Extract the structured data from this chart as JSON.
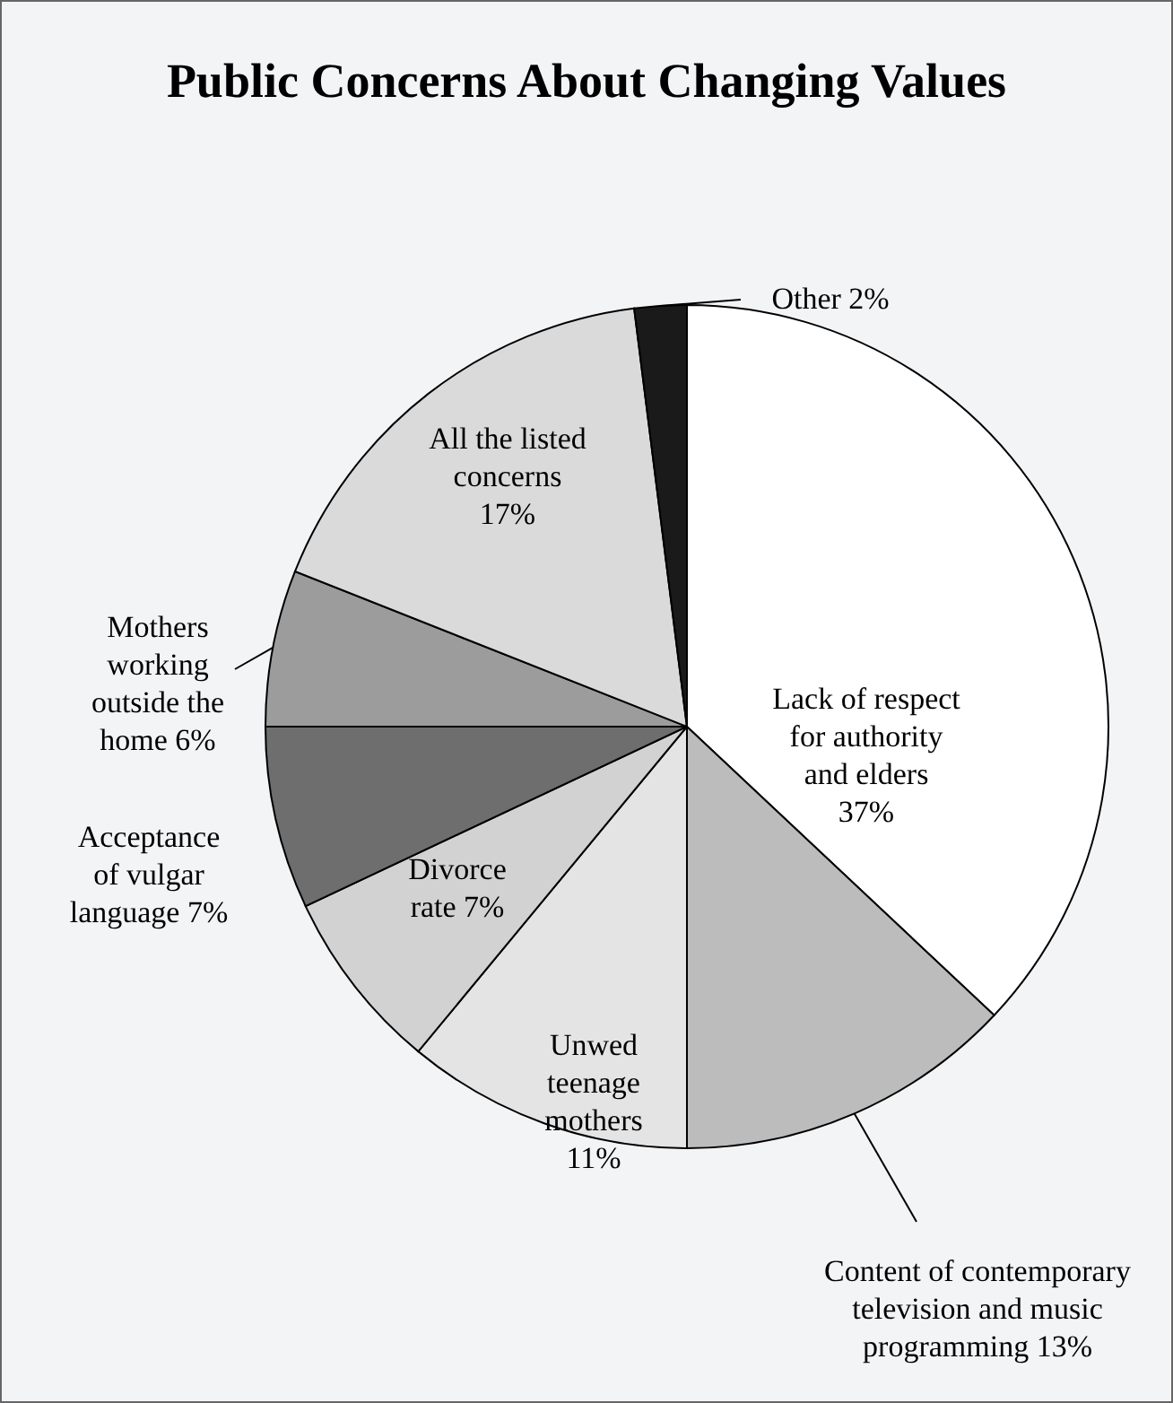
{
  "chart_data": {
    "type": "pie",
    "title": "Public Concerns About Changing Values",
    "categories": [
      "Lack of respect for authority and elders",
      "Content of contemporary television and music programming",
      "Unwed teenage mothers",
      "Divorce rate",
      "Acceptance of vulgar language",
      "Mothers working outside the home",
      "All the listed concerns",
      "Other"
    ],
    "values": [
      37,
      13,
      11,
      7,
      7,
      6,
      17,
      2
    ],
    "value_labels": [
      "37%",
      "13%",
      "11%",
      "7%",
      "7%",
      "6%",
      "17%",
      "2%"
    ],
    "colors": [
      "#ffffff",
      "#bcbcbc",
      "#e4e4e4",
      "#d2d2d2",
      "#6e6e6e",
      "#9c9c9c",
      "#dadada",
      "#1a1a1a"
    ]
  }
}
